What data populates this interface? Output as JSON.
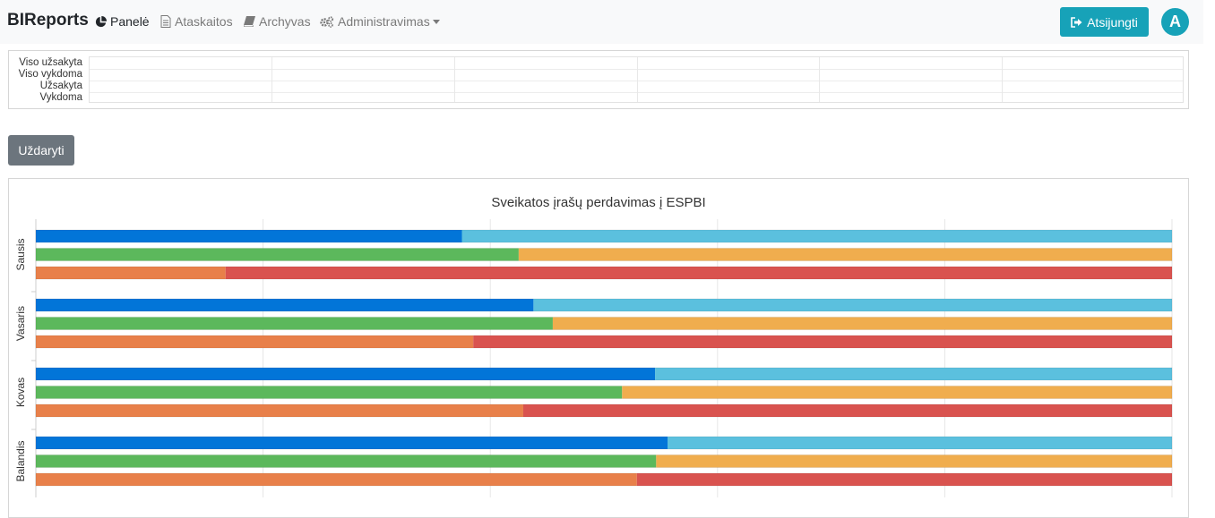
{
  "navbar": {
    "brand": "BIReports",
    "items": [
      {
        "label": "Panelė",
        "icon": "pie-chart-icon",
        "active": true
      },
      {
        "label": "Ataskaitos",
        "icon": "file-text-icon",
        "active": false
      },
      {
        "label": "Archyvas",
        "icon": "book-icon",
        "active": false
      },
      {
        "label": "Administravimas",
        "icon": "cogs-icon",
        "active": false,
        "dropdown": true
      }
    ],
    "logout_label": "Atsijungti",
    "logout_icon": "sign-out-icon",
    "avatar_letter": "A"
  },
  "summary_table": {
    "row_labels": [
      "Viso užsakyta",
      "Viso vykdoma",
      "Užsakyta",
      "Vykdoma"
    ]
  },
  "close_button_label": "Uždaryti",
  "chart_data": {
    "type": "bar",
    "orientation": "horizontal",
    "stacked": true,
    "title": "Sveikatos įrašų perdavimas į ESPBI",
    "categories": [
      "Sausis",
      "Vasaris",
      "Kovas",
      "Balandis"
    ],
    "bar_groups": [
      {
        "name": "",
        "color_done": "#0275d8",
        "color_rest": "#5bc0de"
      },
      {
        "name": "",
        "color_done": "#5cb85c",
        "color_rest": "#f0ad4e"
      },
      {
        "name": "",
        "color_done": "#e8804a",
        "color_rest": "#d9534f"
      }
    ],
    "values": {
      "Sausis": [
        0.375,
        0.425,
        0.167
      ],
      "Vasaris": [
        0.438,
        0.455,
        0.385
      ],
      "Kovas": [
        0.545,
        0.516,
        0.429
      ],
      "Balandis": [
        0.556,
        0.546,
        0.529
      ]
    },
    "xlim": [
      0,
      1
    ],
    "grid": true
  }
}
